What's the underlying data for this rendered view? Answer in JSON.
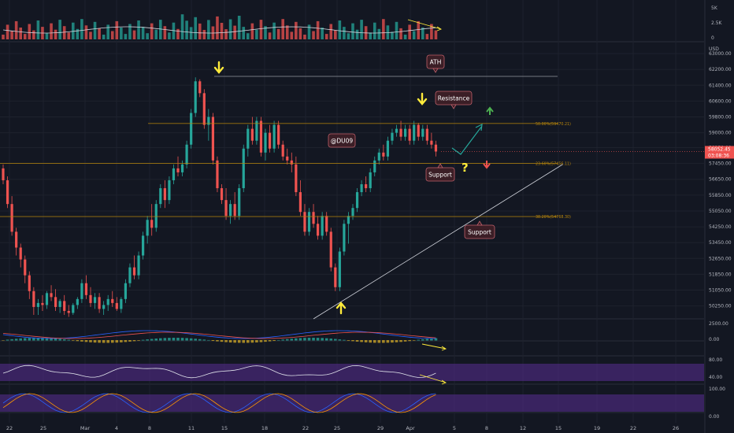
{
  "chart_data": {
    "type": "candlestick",
    "price_axis": {
      "unit": "USD",
      "ticks": [
        63000,
        62200,
        61400,
        60600,
        59800,
        59000,
        58250,
        57450,
        56650,
        55850,
        55050,
        54250,
        53450,
        52650,
        51850,
        51050,
        50250
      ],
      "tick_labels": [
        "63000.00",
        "62200.00",
        "61400.00",
        "60600.00",
        "59800.00",
        "59000.00",
        "58250.00",
        "57450.00",
        "56650.00",
        "55850.00",
        "55050.00",
        "54250.00",
        "53450.00",
        "52650.00",
        "51850.00",
        "51050.00",
        "50250.00"
      ],
      "range": [
        49600,
        63400
      ],
      "last_price": "58052.45",
      "countdown": "03:08:36"
    },
    "time_axis": {
      "labels": [
        "22",
        "25",
        "Mar",
        "4",
        "8",
        "11",
        "15",
        "18",
        "22",
        "25",
        "29",
        "Apr",
        "5",
        "8",
        "12",
        "15",
        "19",
        "22",
        "26"
      ]
    },
    "candles": [
      [
        57200,
        57400,
        56400,
        56600
      ],
      [
        56600,
        56800,
        55200,
        55400
      ],
      [
        55400,
        55800,
        53800,
        54000
      ],
      [
        54000,
        54200,
        52800,
        53200
      ],
      [
        53200,
        53400,
        52200,
        52600
      ],
      [
        52600,
        52800,
        51400,
        51800
      ],
      [
        51800,
        52000,
        50600,
        51000
      ],
      [
        51000,
        51200,
        49800,
        50200
      ],
      [
        50200,
        50600,
        49800,
        50400
      ],
      [
        50400,
        50800,
        50000,
        50300
      ],
      [
        50300,
        51000,
        50100,
        50900
      ],
      [
        50900,
        51300,
        50500,
        50700
      ],
      [
        50700,
        51100,
        50000,
        50200
      ],
      [
        50200,
        50600,
        49900,
        50500
      ],
      [
        50500,
        50800,
        49800,
        50000
      ],
      [
        50000,
        50300,
        49700,
        49900
      ],
      [
        49900,
        50400,
        49800,
        50300
      ],
      [
        50300,
        50700,
        50100,
        50600
      ],
      [
        50600,
        51600,
        50400,
        51400
      ],
      [
        51400,
        51800,
        50600,
        50800
      ],
      [
        50800,
        51200,
        50200,
        50400
      ],
      [
        50400,
        50900,
        50100,
        50700
      ],
      [
        50700,
        50900,
        49900,
        50100
      ],
      [
        50100,
        50500,
        49800,
        50300
      ],
      [
        50300,
        50800,
        50000,
        50600
      ],
      [
        50600,
        51000,
        50200,
        50400
      ],
      [
        50400,
        50700,
        50000,
        50100
      ],
      [
        50100,
        50700,
        49900,
        50600
      ],
      [
        50600,
        51600,
        50400,
        51400
      ],
      [
        51400,
        52400,
        51200,
        52200
      ],
      [
        52200,
        52800,
        51600,
        51800
      ],
      [
        51800,
        53000,
        51600,
        52800
      ],
      [
        52800,
        54000,
        52600,
        53800
      ],
      [
        53800,
        54800,
        53400,
        54600
      ],
      [
        54600,
        55400,
        53800,
        54200
      ],
      [
        54200,
        55600,
        54000,
        55400
      ],
      [
        55400,
        56400,
        55200,
        56200
      ],
      [
        56200,
        56600,
        55200,
        55600
      ],
      [
        55600,
        56800,
        55400,
        56600
      ],
      [
        56600,
        57400,
        56400,
        57200
      ],
      [
        57200,
        57800,
        56800,
        57000
      ],
      [
        57000,
        57600,
        56800,
        57400
      ],
      [
        57400,
        58600,
        57200,
        58400
      ],
      [
        58400,
        60200,
        58200,
        60000
      ],
      [
        60000,
        61800,
        59800,
        61600
      ],
      [
        61600,
        61700,
        60800,
        61000
      ],
      [
        61000,
        61200,
        59200,
        59400
      ],
      [
        59400,
        60200,
        58600,
        59800
      ],
      [
        59800,
        60000,
        57400,
        57600
      ],
      [
        57600,
        57800,
        56000,
        56200
      ],
      [
        56200,
        56400,
        55400,
        55600
      ],
      [
        55600,
        56200,
        54600,
        54800
      ],
      [
        54800,
        55600,
        54400,
        55400
      ],
      [
        55400,
        56000,
        54600,
        54800
      ],
      [
        54800,
        56400,
        54600,
        56200
      ],
      [
        56200,
        58400,
        56000,
        58200
      ],
      [
        58200,
        59400,
        57800,
        59200
      ],
      [
        59200,
        59800,
        58400,
        58600
      ],
      [
        58600,
        59800,
        58400,
        59600
      ],
      [
        59600,
        59800,
        57800,
        58000
      ],
      [
        58000,
        59200,
        57600,
        59000
      ],
      [
        59000,
        59400,
        58000,
        58200
      ],
      [
        58200,
        59600,
        58000,
        59400
      ],
      [
        59400,
        59600,
        58200,
        58400
      ],
      [
        58400,
        58600,
        57600,
        57800
      ],
      [
        57800,
        58200,
        57400,
        57600
      ],
      [
        57600,
        58000,
        57000,
        57400
      ],
      [
        57400,
        57800,
        55800,
        56000
      ],
      [
        56000,
        56600,
        54800,
        55000
      ],
      [
        55000,
        55400,
        53800,
        54000
      ],
      [
        54000,
        55200,
        53800,
        55000
      ],
      [
        55000,
        55400,
        54200,
        54400
      ],
      [
        54400,
        54800,
        53600,
        53800
      ],
      [
        53800,
        55000,
        53600,
        54800
      ],
      [
        54800,
        55000,
        53800,
        54000
      ],
      [
        54000,
        54200,
        52000,
        52200
      ],
      [
        52200,
        52400,
        51000,
        51200
      ],
      [
        51200,
        53200,
        51000,
        53000
      ],
      [
        53000,
        54600,
        52800,
        54400
      ],
      [
        54400,
        55000,
        53400,
        54800
      ],
      [
        54800,
        55400,
        54600,
        55200
      ],
      [
        55200,
        56200,
        55000,
        56000
      ],
      [
        56000,
        56600,
        55800,
        56400
      ],
      [
        56400,
        56800,
        56000,
        56200
      ],
      [
        56200,
        57200,
        56000,
        57000
      ],
      [
        57000,
        57800,
        56800,
        57600
      ],
      [
        57600,
        58200,
        57400,
        58000
      ],
      [
        58000,
        58400,
        57600,
        57800
      ],
      [
        57800,
        58800,
        57600,
        58600
      ],
      [
        58600,
        59200,
        58400,
        59000
      ],
      [
        59000,
        59400,
        58800,
        59200
      ],
      [
        59200,
        59600,
        58600,
        58800
      ],
      [
        58800,
        59400,
        58600,
        59200
      ],
      [
        59200,
        59400,
        58400,
        58600
      ],
      [
        58600,
        59600,
        58400,
        59400
      ],
      [
        59400,
        59500,
        58600,
        58800
      ],
      [
        58800,
        59400,
        58600,
        59200
      ],
      [
        59200,
        59400,
        58400,
        58600
      ],
      [
        58600,
        59000,
        58200,
        58400
      ],
      [
        58400,
        58600,
        57800,
        58052
      ]
    ],
    "levels": [
      {
        "label": "ATH",
        "price": 61850
      },
      {
        "label": "50.00%(59470.21)",
        "price": 59470
      },
      {
        "label": "23.60%(57456.11)",
        "price": 57456
      },
      {
        "label": "38.20%(54768.30)",
        "price": 54768
      }
    ],
    "trendline": {
      "from_candle": 71,
      "from_price": 49600,
      "to_candle": 128,
      "to_price": 57400
    },
    "annotations": {
      "ath": "ATH",
      "resistance": "Resistance",
      "support_upper": "Support",
      "support_lower": "Support",
      "watermark": "@DU09",
      "question": "?"
    },
    "volume_panel": {
      "tick_labels": [
        "5K",
        "2.5K",
        "0"
      ]
    },
    "macd_panel": {
      "tick_labels": [
        "2500.00",
        "0.00"
      ]
    },
    "rsi_panel": {
      "tick_labels": [
        "80.00",
        "40.00"
      ]
    },
    "stoch_panel": {
      "tick_labels": [
        "100.00",
        "0.00"
      ]
    },
    "colors": {
      "background": "#131722",
      "up": "#26a69a",
      "down": "#ef5350",
      "grid": "#1e222d",
      "fib": "#b8860b",
      "arrow": "#ffeb3b",
      "label_bg": "#3b1e26",
      "label_border": "#c0606a",
      "purple": "#4a2a7a"
    }
  }
}
